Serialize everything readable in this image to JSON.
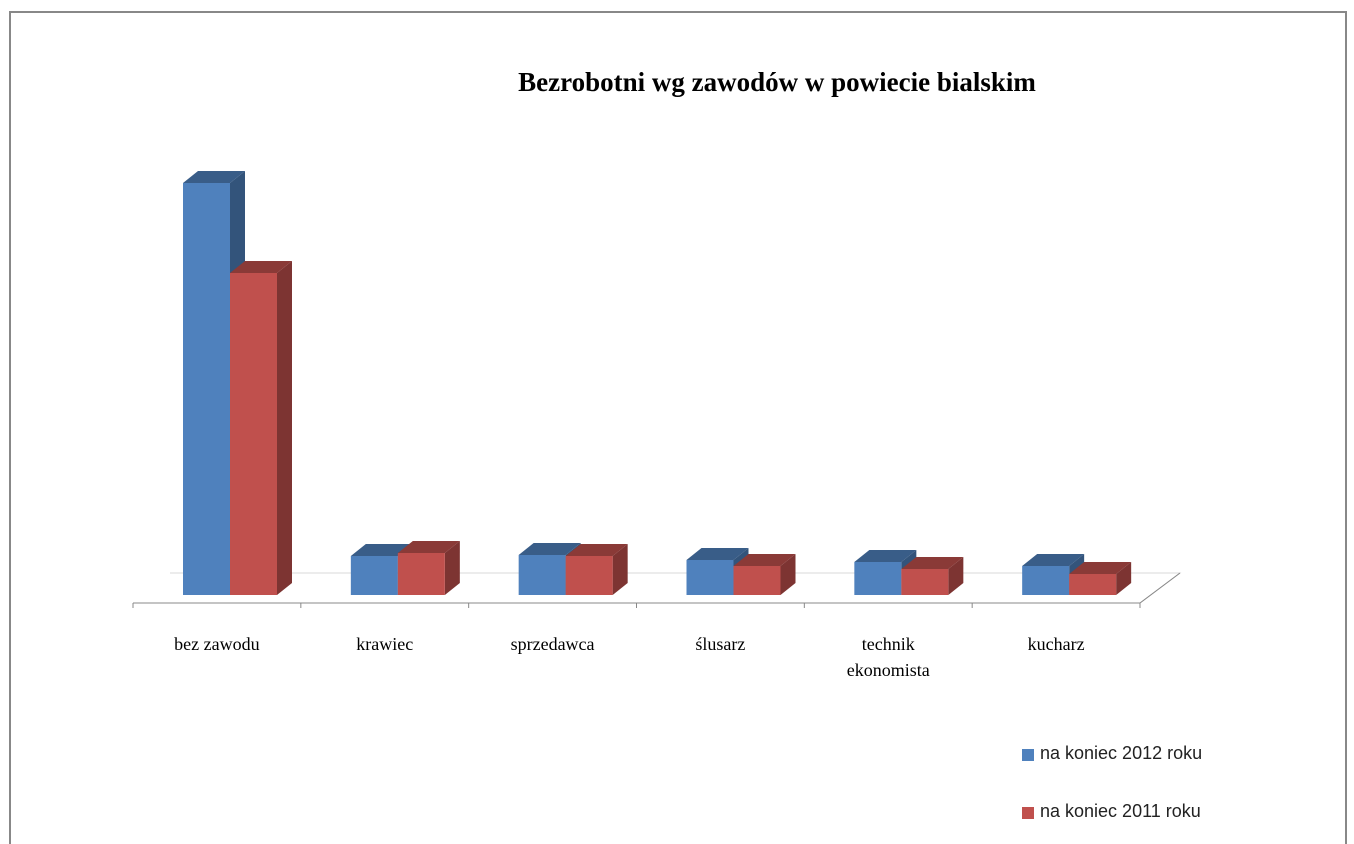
{
  "chart_data": {
    "type": "bar3d",
    "title": "Bezrobotni wg zawodów w powiecie bialskim",
    "categories": [
      "bez zawodu",
      "krawiec",
      "sprzedawca",
      "ślusarz",
      "technik ekonomista",
      "kucharz"
    ],
    "series": [
      {
        "name": "na koniec 2012 roku",
        "color": "#4f81bd",
        "values": [
          412,
          39,
          40,
          35,
          33,
          29
        ]
      },
      {
        "name": "na koniec 2011 roku",
        "color": "#c0504d",
        "values": [
          322,
          42,
          39,
          29,
          26,
          21
        ]
      }
    ],
    "legend": "right"
  }
}
